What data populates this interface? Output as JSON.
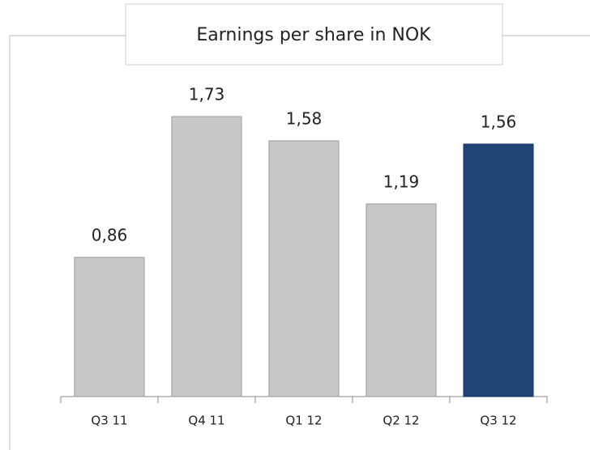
{
  "chart_data": {
    "type": "bar",
    "title": "Earnings per share in NOK",
    "categories": [
      "Q3 11",
      "Q4 11",
      "Q1 12",
      "Q2 12",
      "Q3 12"
    ],
    "values": [
      0.86,
      1.73,
      1.58,
      1.19,
      1.56
    ],
    "value_labels": [
      "0,86",
      "1,73",
      "1,58",
      "1,19",
      "1,56"
    ],
    "colors": [
      "#c8c8c8",
      "#c8c8c8",
      "#c8c8c8",
      "#c8c8c8",
      "#1f4577"
    ]
  }
}
